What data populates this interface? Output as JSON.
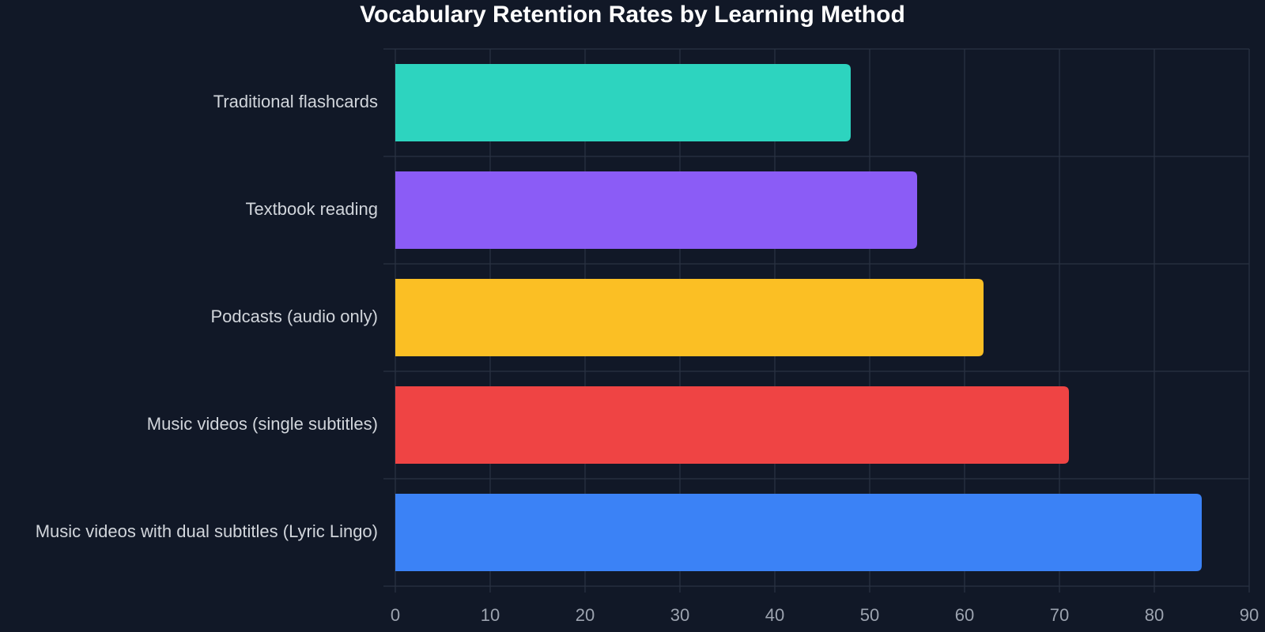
{
  "chart_data": {
    "type": "barh",
    "title": "Vocabulary Retention Rates by Learning Method",
    "categories": [
      "Traditional flashcards",
      "Textbook reading",
      "Podcasts (audio only)",
      "Music videos (single subtitles)",
      "Music videos with dual subtitles (Lyric Lingo)"
    ],
    "values": [
      48,
      55,
      62,
      71,
      85
    ],
    "colors": [
      "#2dd4bf",
      "#8b5cf6",
      "#fbbf24",
      "#ef4444",
      "#3b82f6"
    ],
    "xlim": [
      0,
      90
    ],
    "xticks": [
      0,
      10,
      20,
      30,
      40,
      50,
      60,
      70,
      80,
      90
    ],
    "grid": true
  }
}
